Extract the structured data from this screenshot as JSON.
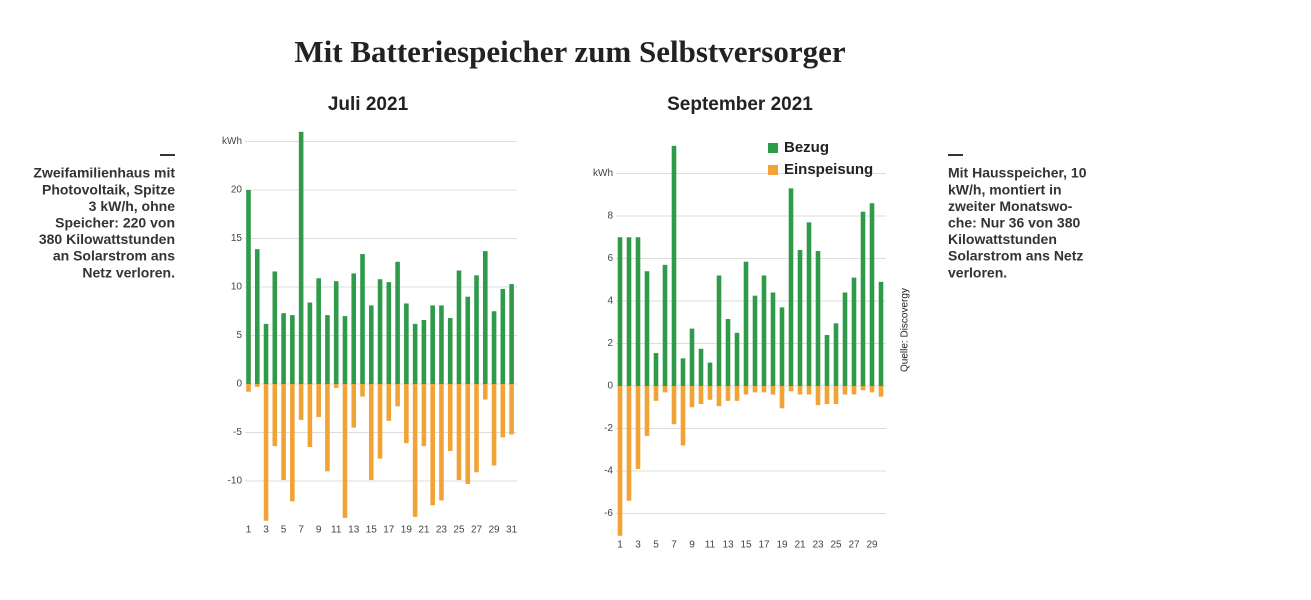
{
  "title": "Mit Batteriespeicher zum Selbstversorger",
  "notes": [
    [
      "Zweifamilienhaus mit",
      "Photovoltaik, Spitze",
      "3 kW/h, ohne",
      "Speicher: 220 von",
      "380 Kilowattstunden",
      "an Solarstrom ans",
      "Netz verloren."
    ],
    [
      "Mit Hausspeicher, 10",
      "kW/h, montiert in",
      "zweiter Monatswo-",
      "che: Nur 36 von 380",
      "Kilowattstunden",
      "Solarstrom ans Netz",
      "verloren."
    ]
  ],
  "source": "Quelle: Discovergy",
  "chart_data": [
    {
      "type": "bar",
      "title": "Juli 2021",
      "categories": [
        "1",
        null,
        "3",
        null,
        "5",
        null,
        "7",
        null,
        "9",
        null,
        "11",
        null,
        "13",
        null,
        "15",
        null,
        "17",
        null,
        "19",
        null,
        "21",
        null,
        "23",
        null,
        "25",
        null,
        "27",
        null,
        "29",
        null,
        "31"
      ],
      "series": [
        {
          "name": "Bezug",
          "color": "#2e9a4a",
          "values": [
            20,
            13.9,
            6.2,
            11.6,
            7.3,
            7.1,
            26,
            8.4,
            10.9,
            7.1,
            10.6,
            7.0,
            11.4,
            13.4,
            8.1,
            10.8,
            10.5,
            12.6,
            8.3,
            6.2,
            6.6,
            8.1,
            8.1,
            6.8,
            11.7,
            9.0,
            11.2,
            13.7,
            7.5,
            9.8,
            10.3
          ]
        },
        {
          "name": "Einspeisung",
          "color": "#f2a335",
          "values": [
            -0.8,
            -0.3,
            -14.1,
            -6.4,
            -9.9,
            -12.1,
            -3.7,
            -6.5,
            -3.4,
            -9.0,
            -0.4,
            -13.8,
            -4.5,
            -1.3,
            -9.9,
            -7.7,
            -3.8,
            -2.3,
            -6.1,
            -13.7,
            -6.4,
            -12.5,
            -12.0,
            -6.9,
            -9.9,
            -10.3,
            -9.1,
            -1.6,
            -8.4,
            -5.5,
            -5.2
          ]
        }
      ],
      "ylim": [
        -15,
        26
      ],
      "yticks": [
        -10,
        -5,
        0,
        5,
        10,
        15,
        20,
        {
          "value": 25,
          "label": "kWh"
        }
      ],
      "grid": true,
      "stacked": false,
      "legend": false
    },
    {
      "type": "bar",
      "title": "September 2021",
      "categories": [
        "1",
        null,
        "3",
        null,
        "5",
        null,
        "7",
        null,
        "9",
        null,
        "11",
        null,
        "13",
        null,
        "15",
        null,
        "17",
        null,
        "19",
        null,
        "21",
        null,
        "23",
        null,
        "25",
        null,
        "27",
        null,
        "29",
        null
      ],
      "series": [
        {
          "name": "Bezug",
          "color": "#2e9a4a",
          "values": [
            7.0,
            7.0,
            7.0,
            5.4,
            1.55,
            5.7,
            11.3,
            1.3,
            2.7,
            1.75,
            1.1,
            5.2,
            3.15,
            2.5,
            5.85,
            4.25,
            5.2,
            4.4,
            3.7,
            9.3,
            6.4,
            7.7,
            6.35,
            2.4,
            2.95,
            4.4,
            5.1,
            8.2,
            8.6,
            4.9
          ]
        },
        {
          "name": "Einspeisung",
          "color": "#f2a335",
          "values": [
            -7.05,
            -5.4,
            -3.9,
            -2.35,
            -0.7,
            -0.3,
            -1.8,
            -2.8,
            -1.0,
            -0.85,
            -0.65,
            -0.95,
            -0.7,
            -0.7,
            -0.4,
            -0.3,
            -0.3,
            -0.4,
            -1.05,
            -0.25,
            -0.4,
            -0.4,
            -0.9,
            -0.85,
            -0.85,
            -0.4,
            -0.4,
            -0.2,
            -0.3,
            -0.5
          ]
        }
      ],
      "ylim": [
        -7.2,
        11.5
      ],
      "yticks": [
        -6,
        -4,
        -2,
        0,
        2,
        4,
        6,
        8,
        {
          "value": 10,
          "label": "kWh"
        }
      ],
      "grid": true,
      "stacked": false,
      "legend": "top-right"
    }
  ]
}
